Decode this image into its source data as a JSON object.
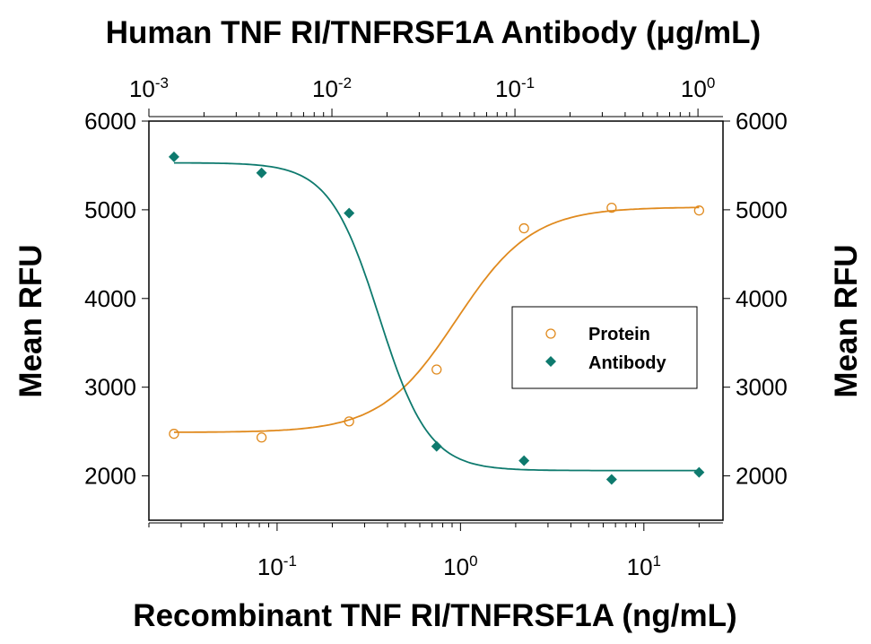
{
  "chart_data": {
    "type": "scatter",
    "title": "Human TNF RI/TNFRSF1A Antibody (μg/mL)",
    "xlabel": "Recombinant TNF RI/TNFRSF1A (ng/mL)",
    "ylabel": "Mean RFU",
    "ylabel_right": "Mean RFU",
    "x_scale": "log",
    "xlim": [
      0.02,
      27
    ],
    "top_x_scale": "log",
    "top_xlim": [
      0.001,
      1.37
    ],
    "ylim": [
      1500,
      6000
    ],
    "y_ticks": [
      2000,
      3000,
      4000,
      5000,
      6000
    ],
    "x_ticks": [
      {
        "base": "10",
        "exp": "-1",
        "value": 0.1
      },
      {
        "base": "10",
        "exp": "0",
        "value": 1
      },
      {
        "base": "10",
        "exp": "1",
        "value": 10
      }
    ],
    "top_x_ticks": [
      {
        "base": "10",
        "exp": "-3",
        "value": 0.001
      },
      {
        "base": "10",
        "exp": "-2",
        "value": 0.01
      },
      {
        "base": "10",
        "exp": "-1",
        "value": 0.1
      },
      {
        "base": "10",
        "exp": "0",
        "value": 1
      }
    ],
    "grid": false,
    "legend_position": "center-right",
    "series": [
      {
        "name": "Protein",
        "marker": "open-circle",
        "color": "#E08A1E",
        "x": [
          0.0274,
          0.0823,
          0.247,
          0.741,
          2.22,
          6.67,
          20
        ],
        "values": [
          2474,
          2433,
          2614,
          3199,
          4791,
          5023,
          4992
        ],
        "fit": {
          "bottom": 2490,
          "top": 5030,
          "ec50": 0.95,
          "hill": 2.1
        }
      },
      {
        "name": "Antibody",
        "marker": "filled-diamond",
        "color": "#0E7A6E",
        "x_axis": "top",
        "x": [
          0.0274,
          0.0823,
          0.247,
          0.741,
          2.22,
          6.67,
          20
        ],
        "values": [
          5597,
          5416,
          4962,
          2333,
          2171,
          1960,
          2040
        ],
        "fit": {
          "bottom": 2060,
          "top": 5530,
          "ec50": 0.36,
          "hill": 3.2
        }
      }
    ]
  }
}
